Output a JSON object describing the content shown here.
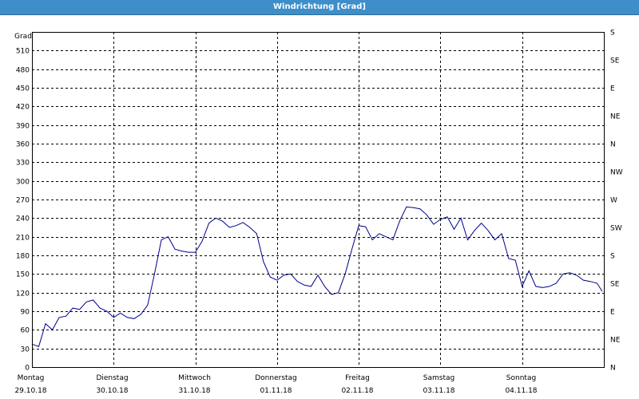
{
  "window": {
    "title": "Windrichtung [Grad]"
  },
  "chart_data": {
    "type": "line",
    "title": "Windrichtung [Grad]",
    "ylabel": "Grad",
    "ylim": [
      0,
      540
    ],
    "yticks": [
      0,
      30,
      60,
      90,
      120,
      150,
      180,
      210,
      240,
      270,
      300,
      330,
      360,
      390,
      420,
      450,
      480,
      510
    ],
    "right_axis_labels": [
      "N",
      "NE",
      "E",
      "SE",
      "S",
      "SW",
      "W",
      "NW",
      "N",
      "NE",
      "E",
      "SE",
      "S"
    ],
    "x_range": [
      "29.10.18 00:00",
      "05.11.18 00:00"
    ],
    "x_tick_days": [
      {
        "day": "Montag",
        "date": "29.10.18"
      },
      {
        "day": "Dienstag",
        "date": "30.10.18"
      },
      {
        "day": "Mittwoch",
        "date": "31.10.18"
      },
      {
        "day": "Donnerstag",
        "date": "01.11.18"
      },
      {
        "day": "Freitag",
        "date": "02.11.18"
      },
      {
        "day": "Samstag",
        "date": "03.11.18"
      },
      {
        "day": "Sonntag",
        "date": "04.11.18"
      }
    ],
    "grid": true,
    "line_color": "#00008b",
    "series": [
      {
        "x": [
          "29.10.18 00:00",
          "29.10.18 02:00",
          "29.10.18 04:00",
          "29.10.18 06:00",
          "29.10.18 08:00",
          "29.10.18 10:00",
          "29.10.18 12:00",
          "29.10.18 14:00",
          "29.10.18 16:00",
          "29.10.18 18:00",
          "29.10.18 20:00",
          "29.10.18 22:00",
          "30.10.18 00:00",
          "30.10.18 02:00",
          "30.10.18 04:00",
          "30.10.18 06:00",
          "30.10.18 08:00",
          "30.10.18 10:00",
          "30.10.18 12:00",
          "30.10.18 14:00",
          "30.10.18 16:00",
          "30.10.18 18:00",
          "30.10.18 20:00",
          "30.10.18 22:00",
          "31.10.18 00:00",
          "31.10.18 02:00",
          "31.10.18 04:00",
          "31.10.18 06:00",
          "31.10.18 08:00",
          "31.10.18 10:00",
          "31.10.18 12:00",
          "31.10.18 14:00",
          "31.10.18 16:00",
          "31.10.18 18:00",
          "31.10.18 20:00",
          "31.10.18 22:00",
          "01.11.18 00:00",
          "01.11.18 02:00",
          "01.11.18 04:00",
          "01.11.18 06:00",
          "01.11.18 08:00",
          "01.11.18 10:00",
          "01.11.18 12:00",
          "01.11.18 14:00",
          "01.11.18 16:00",
          "01.11.18 18:00",
          "01.11.18 20:00",
          "01.11.18 22:00",
          "02.11.18 00:00",
          "02.11.18 02:00",
          "02.11.18 04:00",
          "02.11.18 06:00",
          "02.11.18 08:00",
          "02.11.18 10:00",
          "02.11.18 12:00",
          "02.11.18 14:00",
          "02.11.18 16:00",
          "02.11.18 18:00",
          "02.11.18 20:00",
          "02.11.18 22:00",
          "03.11.18 00:00",
          "03.11.18 02:00",
          "03.11.18 04:00",
          "03.11.18 06:00",
          "03.11.18 08:00",
          "03.11.18 10:00",
          "03.11.18 12:00",
          "03.11.18 14:00",
          "03.11.18 16:00",
          "03.11.18 18:00",
          "03.11.18 20:00",
          "03.11.18 22:00",
          "04.11.18 00:00",
          "04.11.18 02:00",
          "04.11.18 04:00",
          "04.11.18 06:00",
          "04.11.18 08:00",
          "04.11.18 10:00",
          "04.11.18 12:00",
          "04.11.18 14:00",
          "04.11.18 16:00",
          "04.11.18 18:00",
          "04.11.18 20:00",
          "04.11.18 22:00",
          "04.11.18 23:30"
        ],
        "values": [
          37,
          33,
          70,
          60,
          80,
          82,
          95,
          93,
          105,
          108,
          95,
          90,
          80,
          87,
          80,
          78,
          85,
          100,
          150,
          205,
          210,
          190,
          187,
          185,
          185,
          203,
          232,
          240,
          235,
          225,
          228,
          233,
          225,
          215,
          170,
          145,
          140,
          148,
          150,
          138,
          132,
          130,
          148,
          130,
          117,
          120,
          150,
          190,
          228,
          226,
          205,
          215,
          210,
          205,
          235,
          258,
          257,
          255,
          245,
          230,
          238,
          242,
          222,
          240,
          205,
          220,
          232,
          220,
          205,
          215,
          175,
          172,
          130,
          155,
          130,
          128,
          130,
          135,
          150,
          152,
          148,
          140,
          138,
          135,
          122
        ]
      }
    ]
  }
}
